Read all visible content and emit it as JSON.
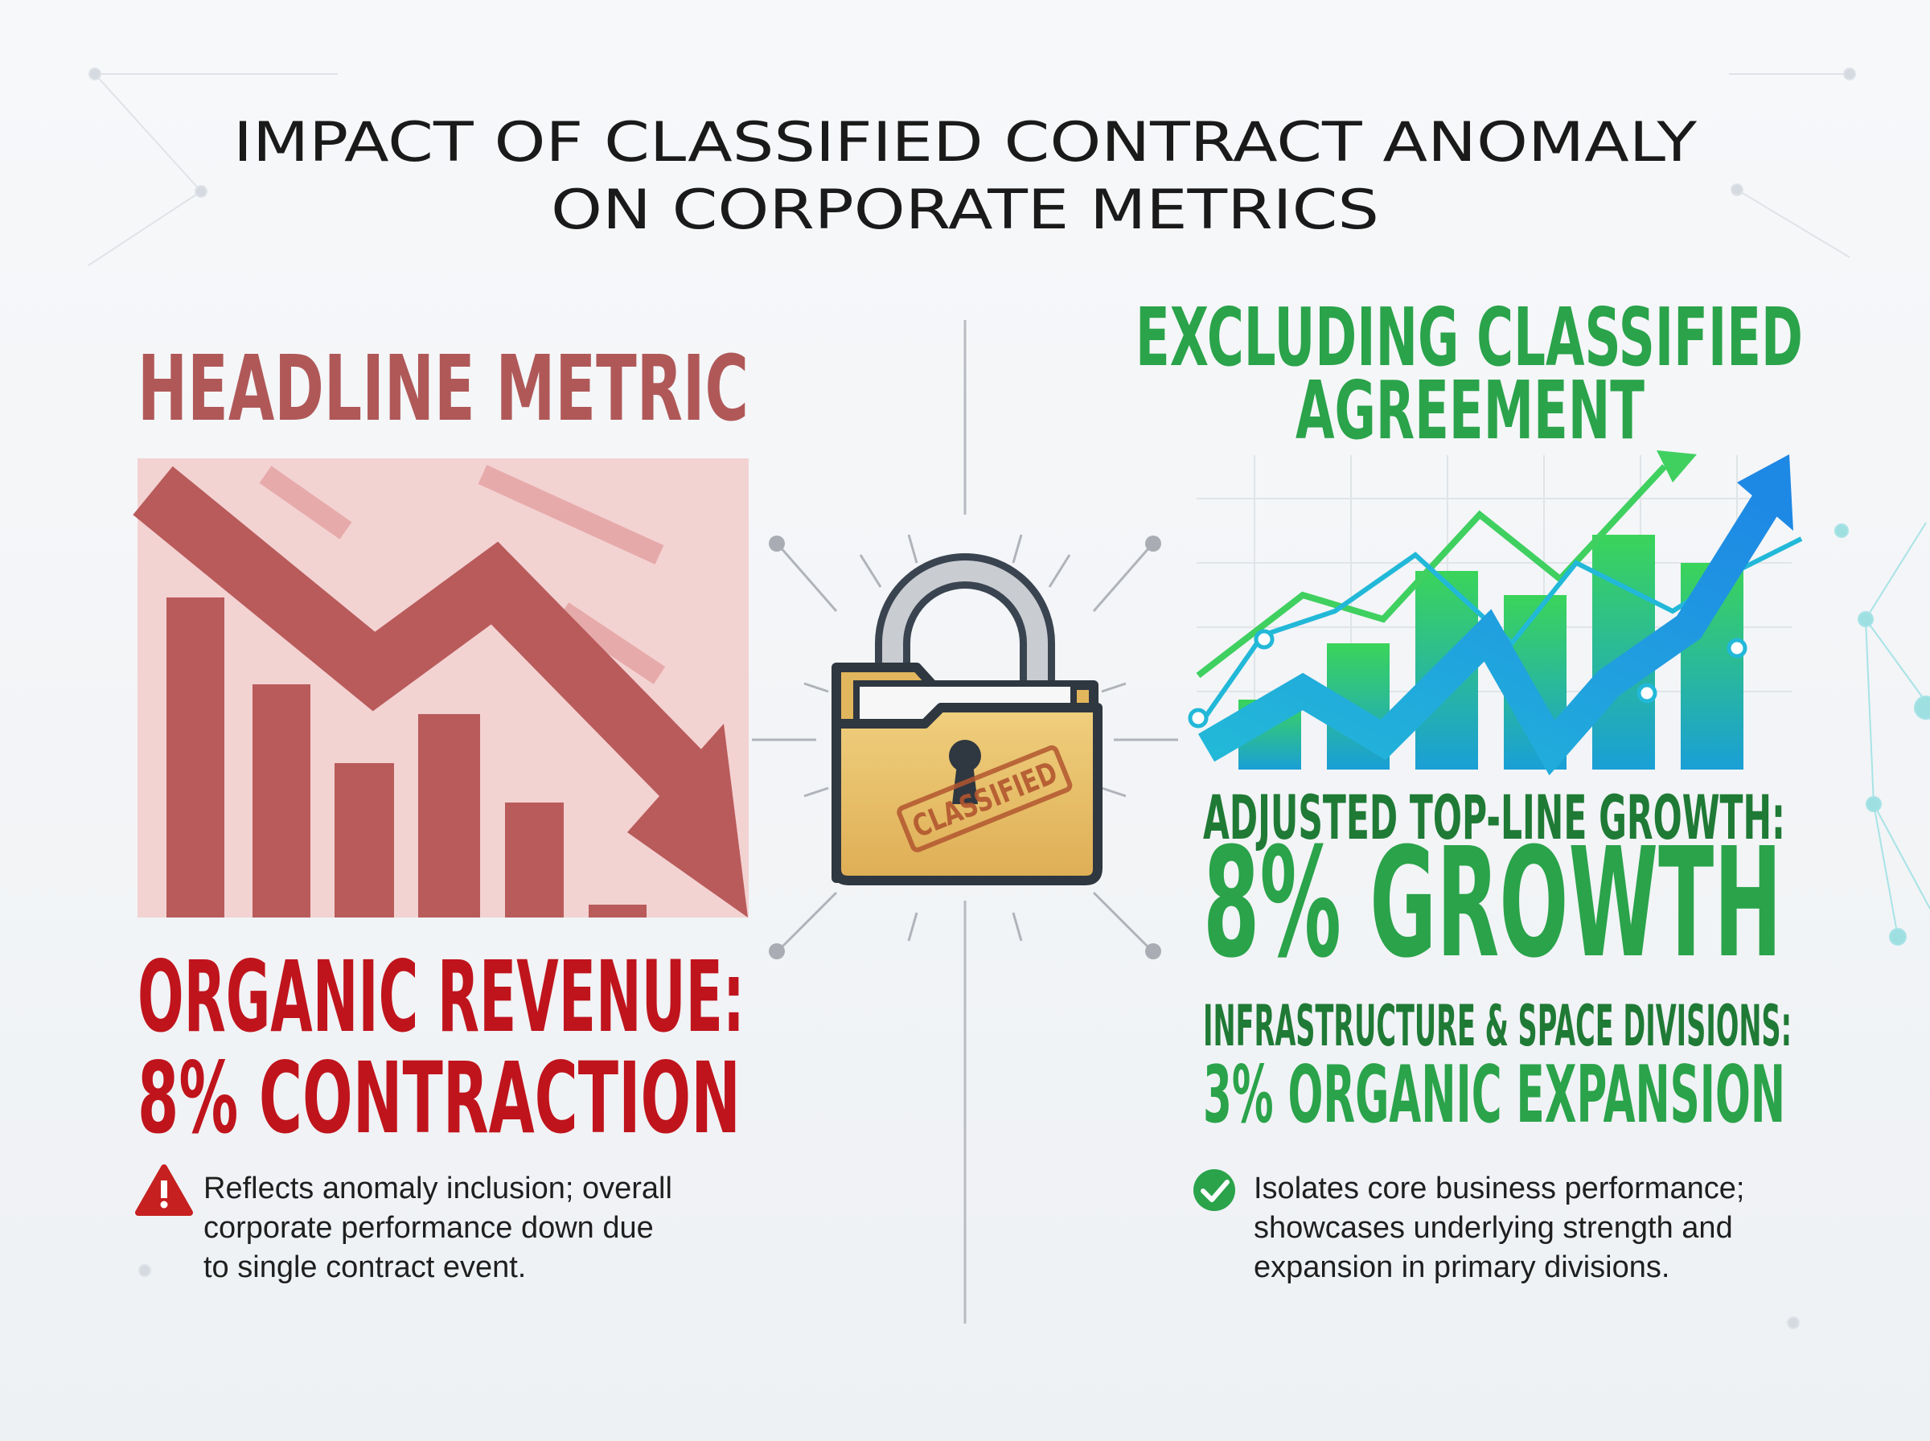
{
  "header": {
    "title_lines": [
      "IMPACT OF CLASSIFIED CONTRACT ANOMALY",
      "ON CORPORATE METRICS"
    ]
  },
  "left": {
    "heading": "HEADLINE METRIC",
    "metric_label": "ORGANIC REVENUE:",
    "metric_value": "8% CONTRACTION",
    "note_lines": [
      "Reflects anomaly inclusion; overall",
      "corporate performance down due",
      "to single contract event."
    ]
  },
  "center": {
    "stamp": "CLASSIFIED"
  },
  "right": {
    "heading_lines": [
      "EXCLUDING CLASSIFIED",
      "AGREEMENT"
    ],
    "metric_label": "ADJUSTED TOP-LINE GROWTH:",
    "metric_value": "8% GROWTH",
    "sub_label": "INFRASTRUCTURE & SPACE DIVISIONS:",
    "sub_value": "3% ORGANIC EXPANSION",
    "note_lines": [
      "Isolates core business performance;",
      "showcases underlying strength and",
      "expansion in primary divisions."
    ]
  }
}
